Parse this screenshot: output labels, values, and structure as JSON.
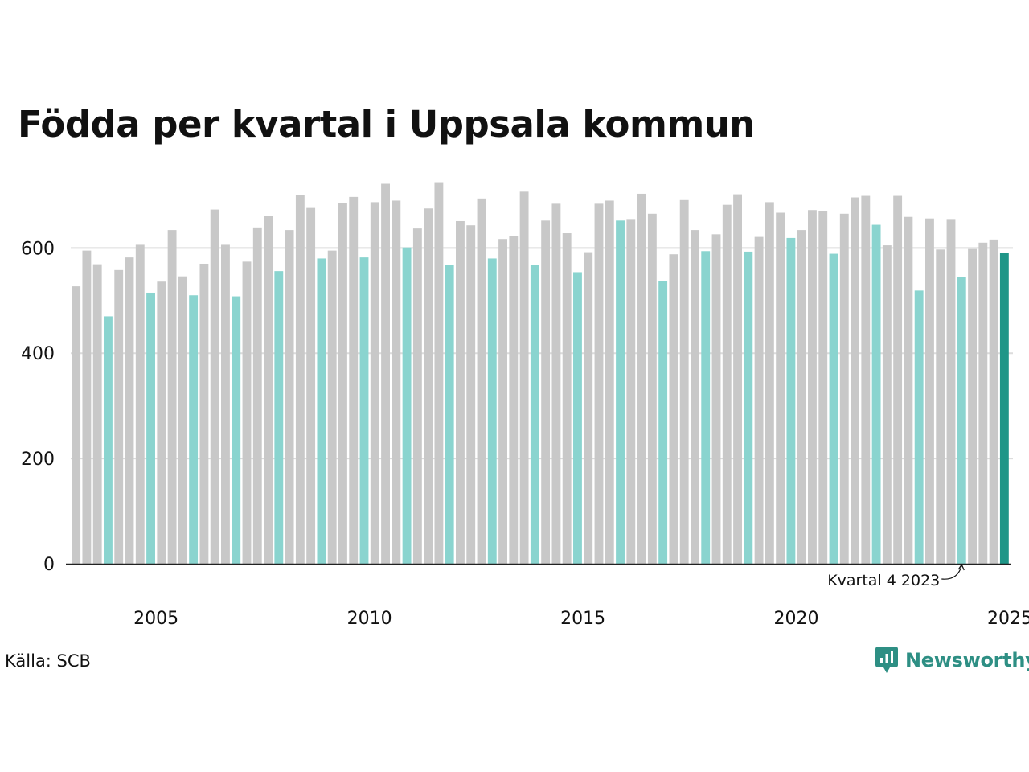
{
  "chart_data": {
    "type": "bar",
    "title": "Födda per kvartal i Uppsala kommun",
    "xlabel": "",
    "ylabel": "",
    "ylim": [
      0,
      720
    ],
    "yticks": [
      0,
      200,
      400,
      600
    ],
    "xtick_labels": [
      "2005",
      "2010",
      "2015",
      "2020",
      "2025"
    ],
    "grid": "horizontal",
    "start": {
      "year": 2003,
      "quarter": 1
    },
    "values": [
      527,
      595,
      569,
      470,
      558,
      582,
      606,
      515,
      536,
      634,
      546,
      510,
      570,
      673,
      606,
      508,
      574,
      639,
      661,
      556,
      634,
      701,
      676,
      580,
      595,
      685,
      697,
      582,
      687,
      722,
      690,
      601,
      637,
      675,
      725,
      568,
      651,
      643,
      694,
      580,
      617,
      623,
      707,
      567,
      652,
      684,
      628,
      554,
      592,
      684,
      690,
      652,
      655,
      703,
      665,
      537,
      588,
      691,
      634,
      594,
      626,
      682,
      702,
      593,
      621,
      687,
      667,
      619,
      634,
      672,
      670,
      589,
      665,
      696,
      699,
      644,
      605,
      699,
      659,
      519,
      656,
      597,
      655,
      545,
      598,
      610,
      616,
      591
    ],
    "colors": {
      "q1_q3": "#c8c8c8",
      "q4": "#8ad4cf",
      "latest": "#1f9688"
    },
    "annotation": {
      "text": "Kvartal 4 2023",
      "year": 2023,
      "quarter": 4
    }
  },
  "source": "Källa: SCB",
  "brand": {
    "name": "Newsworthy",
    "icon": "newsworthy-logo-icon",
    "color": "#2e8f84"
  }
}
